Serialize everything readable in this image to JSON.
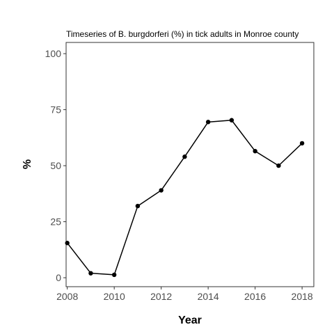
{
  "chart_data": {
    "type": "line",
    "title": "Timeseries of B. burgdorferi (%) in tick adults in Monroe county",
    "xlabel": "Year",
    "ylabel": "%",
    "xlim": [
      2007.95,
      2018.5
    ],
    "ylim": [
      -4,
      105
    ],
    "x_ticks": [
      2008,
      2010,
      2012,
      2014,
      2016,
      2018
    ],
    "y_ticks": [
      0,
      25,
      50,
      75,
      100
    ],
    "grid": false,
    "series": [
      {
        "x": [
          2008,
          2009,
          2010,
          2011,
          2012,
          2013,
          2014,
          2015,
          2016,
          2017,
          2018
        ],
        "y": [
          15.5,
          2,
          1.3,
          32,
          39,
          54,
          69.5,
          70.3,
          56.5,
          50,
          60
        ],
        "color": "#000000"
      }
    ]
  }
}
